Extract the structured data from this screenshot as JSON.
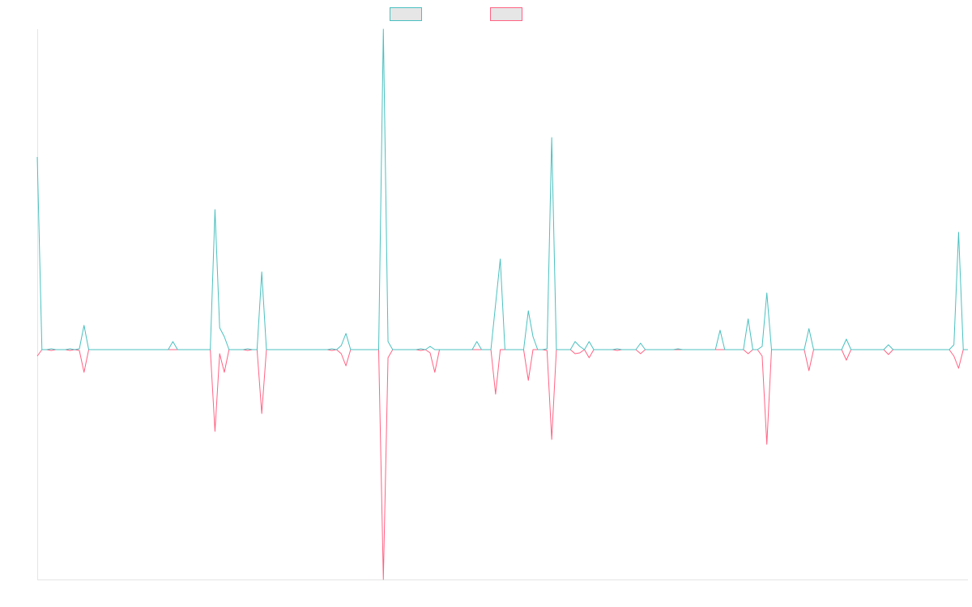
{
  "chart_data": {
    "type": "line",
    "legend": "top",
    "categories": [
      null,
      null,
      null,
      null,
      null,
      null,
      null,
      null,
      null,
      null,
      null,
      null,
      null,
      null,
      null,
      null,
      null,
      null,
      null,
      null,
      null,
      null,
      null,
      null,
      null,
      null,
      null,
      null,
      null,
      null,
      null,
      null,
      null,
      null,
      null,
      null,
      null,
      null,
      null,
      null,
      null,
      null,
      null,
      null,
      null,
      null,
      null,
      null,
      null,
      null,
      null,
      null,
      null,
      null,
      null,
      null,
      null,
      null,
      null,
      null,
      null,
      null,
      null,
      null,
      null,
      null,
      null,
      null,
      null,
      null,
      null,
      null,
      null,
      null,
      null,
      null,
      null,
      null,
      null,
      null,
      null,
      null,
      null,
      null,
      null,
      null,
      null,
      null,
      null,
      null,
      null,
      null,
      null,
      null,
      null,
      null,
      null,
      null,
      null,
      null,
      null,
      null,
      null,
      null,
      null,
      null,
      null,
      null,
      null,
      null,
      null,
      null,
      null,
      null,
      null,
      null,
      null,
      null,
      null,
      null,
      null,
      null,
      null,
      null,
      null,
      null,
      null,
      null,
      null,
      null,
      null,
      null,
      null,
      null,
      null,
      null,
      null,
      null,
      null,
      null,
      null,
      null,
      null,
      null,
      null,
      null,
      null,
      null,
      null,
      null,
      null,
      null,
      null,
      null,
      null,
      null,
      null,
      null,
      null,
      null,
      null,
      null,
      null,
      null,
      null,
      null,
      null,
      null,
      null,
      null,
      null,
      null,
      null,
      null,
      null,
      null,
      null,
      null,
      null,
      null,
      null,
      null,
      null,
      null,
      null,
      null,
      null,
      null,
      null,
      null,
      null,
      null,
      null,
      null,
      null,
      null,
      null,
      null,
      null,
      null
    ],
    "series": [
      {
        "color": "#4bc0c0",
        "values": [
          238,
          0,
          0,
          1,
          0,
          0,
          0,
          1,
          0,
          1,
          30,
          0,
          0,
          0,
          0,
          0,
          0,
          0,
          0,
          0,
          0,
          0,
          0,
          0,
          0,
          0,
          0,
          0,
          0,
          10,
          0,
          0,
          0,
          0,
          0,
          0,
          0,
          0,
          173,
          27,
          16,
          0,
          0,
          0,
          0,
          1,
          0,
          0,
          96,
          0,
          0,
          0,
          0,
          0,
          0,
          0,
          0,
          0,
          0,
          0,
          0,
          0,
          0,
          1,
          0,
          5,
          20,
          0,
          0,
          0,
          0,
          0,
          0,
          0,
          396,
          10,
          0,
          0,
          0,
          0,
          0,
          0,
          1,
          0,
          4,
          0,
          0,
          0,
          0,
          0,
          0,
          0,
          0,
          0,
          10,
          0,
          0,
          0,
          56,
          112,
          0,
          0,
          0,
          0,
          0,
          48,
          16,
          0,
          0,
          1,
          262,
          0,
          0,
          0,
          0,
          10,
          4,
          0,
          10,
          0,
          0,
          0,
          0,
          0,
          1,
          0,
          0,
          0,
          0,
          8,
          0,
          0,
          0,
          0,
          0,
          0,
          0,
          1,
          0,
          0,
          0,
          0,
          0,
          0,
          0,
          0,
          24,
          0,
          0,
          0,
          0,
          0,
          38,
          0,
          0,
          4,
          70,
          0,
          0,
          0,
          0,
          0,
          0,
          0,
          0,
          26,
          0,
          0,
          0,
          0,
          0,
          0,
          0,
          13,
          0,
          0,
          0,
          0,
          0,
          0,
          0,
          0,
          6,
          0,
          0,
          0,
          0,
          0,
          0,
          0,
          0,
          0,
          0,
          0,
          0,
          0,
          6,
          145,
          0,
          0
        ]
      },
      {
        "color": "#ff6384",
        "values": [
          -8,
          0,
          0,
          -1,
          0,
          0,
          0,
          -1,
          0,
          -1,
          -28,
          0,
          0,
          0,
          0,
          0,
          0,
          0,
          0,
          0,
          0,
          0,
          0,
          0,
          0,
          0,
          0,
          0,
          0,
          0,
          0,
          0,
          0,
          0,
          0,
          0,
          0,
          0,
          -101,
          -5,
          -28,
          0,
          0,
          0,
          0,
          -1,
          0,
          0,
          -79,
          0,
          0,
          0,
          0,
          0,
          0,
          0,
          0,
          0,
          0,
          0,
          0,
          0,
          0,
          -1,
          0,
          -5,
          -20,
          0,
          0,
          0,
          0,
          0,
          0,
          0,
          -284,
          -10,
          0,
          0,
          0,
          0,
          0,
          0,
          -1,
          0,
          -4,
          -28,
          0,
          0,
          0,
          0,
          0,
          0,
          0,
          0,
          0,
          0,
          0,
          0,
          -55,
          0,
          0,
          0,
          0,
          0,
          0,
          -38,
          0,
          0,
          0,
          -1,
          -111,
          0,
          0,
          0,
          0,
          -5,
          -4,
          0,
          -10,
          0,
          0,
          0,
          0,
          0,
          -1,
          0,
          0,
          0,
          0,
          -5,
          0,
          0,
          0,
          0,
          0,
          0,
          0,
          0,
          0,
          0,
          0,
          0,
          0,
          0,
          0,
          0,
          0,
          0,
          0,
          0,
          0,
          0,
          -5,
          0,
          0,
          -8,
          -117,
          0,
          0,
          0,
          0,
          0,
          0,
          0,
          0,
          -26,
          0,
          0,
          0,
          0,
          0,
          0,
          0,
          -13,
          0,
          0,
          0,
          0,
          0,
          0,
          0,
          0,
          -6,
          0,
          0,
          0,
          0,
          0,
          0,
          0,
          0,
          0,
          0,
          0,
          0,
          0,
          -8,
          -23,
          0,
          0
        ]
      }
    ],
    "ylim": [
      -284,
      396
    ]
  }
}
